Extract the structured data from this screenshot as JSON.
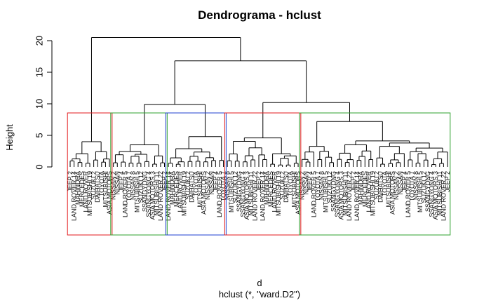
{
  "chart_data": {
    "type": "dendrogram",
    "title": "Dendrograma - hclust",
    "xlabel": "d",
    "sublabel": "hclust (*, \"ward.D2\")",
    "ylabel": "Height",
    "ylim": [
      0,
      21
    ],
    "yticks": [
      0,
      5,
      10,
      15,
      20
    ],
    "merges": [
      {
        "height": 20.5,
        "left": "A",
        "right": "BCDE"
      },
      {
        "height": 16.8,
        "left": "BC",
        "right": "DE"
      },
      {
        "height": 9.9,
        "left": "B",
        "right": "C"
      },
      {
        "height": 10.2,
        "left": "D",
        "right": "E"
      }
    ],
    "clusters": [
      {
        "id": "A",
        "color": "#e31a1c",
        "leaf_count": 11
      },
      {
        "id": "B",
        "color": "#2ca02c",
        "leaf_count": 14
      },
      {
        "id": "C",
        "color": "#1f3fd0",
        "leaf_count": 15
      },
      {
        "id": "D",
        "color": "#e31a1c",
        "leaf_count": 19
      },
      {
        "id": "E",
        "color": "#2ca02c",
        "leaf_count": 38
      }
    ],
    "leaf_labels": [
      "JEEP 2",
      "LAND ROVER 14",
      "MAHINDRA",
      "MERCEDES",
      "LAND ROVER",
      "MITSUBISHI 19",
      "SUZUKI 2",
      "DAIHATSU",
      "TOYOTA",
      "MITSUBISHI",
      "ASIA MOTORS",
      "NISSAN 2",
      "NISSAN",
      "JEEP 4",
      "LAND ROVER 5",
      "TOYOTA 7",
      "NISSAN 8",
      "MITSUBISHI 5",
      "SUZUKI 12",
      "SSANGYONG",
      "SSANGYONG 4",
      "ASIA MOTORS 3",
      "MITSUBISHI 11",
      "LAND ROVER 22"
    ]
  }
}
